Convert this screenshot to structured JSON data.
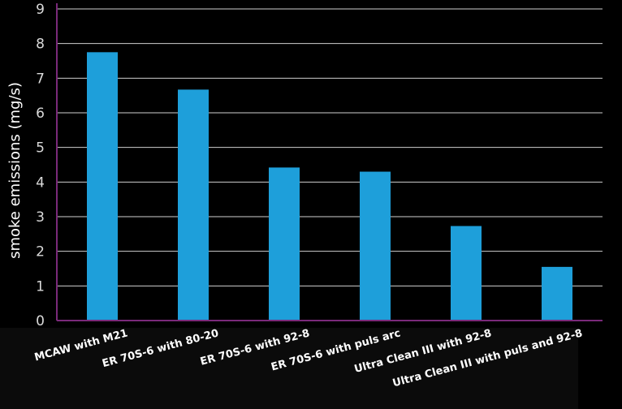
{
  "chart_data": {
    "type": "bar",
    "categories": [
      "MCAW with M21",
      "ER 70S-6 with 80-20",
      "ER 70S-6 with 92-8",
      "ER 70S-6 with puls arc",
      "Ultra Clean III with 92-8",
      "Ultra Clean III with puls and 92-8"
    ],
    "values": [
      7.75,
      6.67,
      4.42,
      4.3,
      2.73,
      1.55
    ],
    "ylabel": "smoke emissions (mg/s)",
    "xlabel": "",
    "ylim": [
      0,
      9
    ],
    "yticks": [
      0,
      1,
      2,
      3,
      4,
      5,
      6,
      7,
      8,
      9
    ],
    "grid": true,
    "colors": {
      "bar": "#1e9fda",
      "axis": "#7a2a7a",
      "grid": "#cfcfcf",
      "background": "#000000"
    }
  }
}
